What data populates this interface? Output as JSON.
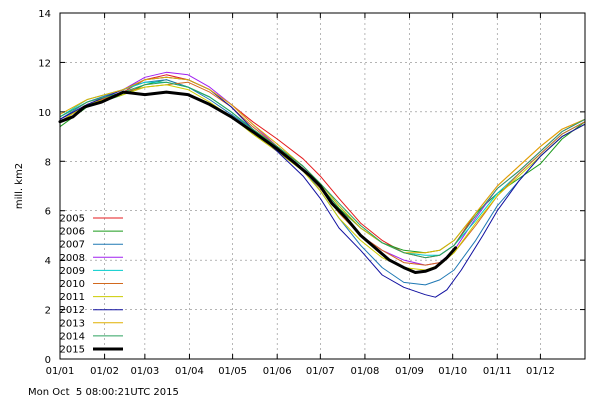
{
  "chart_data": {
    "type": "line",
    "title": "",
    "xlabel": "",
    "ylabel": "mill. km2",
    "ylim": [
      0,
      14
    ],
    "yticks": [
      0,
      2,
      4,
      6,
      8,
      10,
      12,
      14
    ],
    "xlim": [
      1,
      366
    ],
    "xticks": [
      {
        "day": 1,
        "label": "01/01"
      },
      {
        "day": 32,
        "label": "01/02"
      },
      {
        "day": 60,
        "label": "01/03"
      },
      {
        "day": 91,
        "label": "01/04"
      },
      {
        "day": 121,
        "label": "01/05"
      },
      {
        "day": 152,
        "label": "01/06"
      },
      {
        "day": 182,
        "label": "01/07"
      },
      {
        "day": 213,
        "label": "01/08"
      },
      {
        "day": 244,
        "label": "01/09"
      },
      {
        "day": 274,
        "label": "01/10"
      },
      {
        "day": 305,
        "label": "01/11"
      },
      {
        "day": 335,
        "label": "01/12"
      }
    ],
    "grid": true,
    "legend_position": "bottom-left",
    "series": [
      {
        "name": "2005",
        "color": "#e41a1c",
        "width": 1,
        "points": [
          [
            1,
            9.7
          ],
          [
            20,
            10.3
          ],
          [
            45,
            10.8
          ],
          [
            60,
            11.3
          ],
          [
            75,
            11.5
          ],
          [
            90,
            11.3
          ],
          [
            105,
            10.9
          ],
          [
            120,
            10.3
          ],
          [
            135,
            9.6
          ],
          [
            152,
            8.9
          ],
          [
            170,
            8.1
          ],
          [
            182,
            7.4
          ],
          [
            195,
            6.5
          ],
          [
            210,
            5.5
          ],
          [
            225,
            4.8
          ],
          [
            240,
            4.3
          ],
          [
            255,
            4.1
          ],
          [
            265,
            4.2
          ],
          [
            275,
            4.6
          ],
          [
            290,
            5.9
          ],
          [
            305,
            7.0
          ],
          [
            320,
            7.8
          ],
          [
            335,
            8.6
          ],
          [
            350,
            9.3
          ],
          [
            366,
            9.7
          ]
        ]
      },
      {
        "name": "2006",
        "color": "#1a9a1a",
        "width": 1,
        "points": [
          [
            1,
            9.4
          ],
          [
            20,
            10.2
          ],
          [
            45,
            10.7
          ],
          [
            60,
            11.1
          ],
          [
            75,
            11.3
          ],
          [
            90,
            11.0
          ],
          [
            105,
            10.6
          ],
          [
            120,
            10.0
          ],
          [
            135,
            9.3
          ],
          [
            152,
            8.6
          ],
          [
            170,
            7.8
          ],
          [
            182,
            7.0
          ],
          [
            195,
            6.1
          ],
          [
            210,
            5.3
          ],
          [
            225,
            4.7
          ],
          [
            240,
            4.4
          ],
          [
            255,
            4.3
          ],
          [
            265,
            4.4
          ],
          [
            275,
            4.8
          ],
          [
            290,
            5.9
          ],
          [
            305,
            6.7
          ],
          [
            320,
            7.3
          ],
          [
            335,
            7.9
          ],
          [
            350,
            8.9
          ],
          [
            366,
            9.6
          ]
        ]
      },
      {
        "name": "2007",
        "color": "#1f78b4",
        "width": 1,
        "points": [
          [
            1,
            9.7
          ],
          [
            20,
            10.4
          ],
          [
            45,
            10.9
          ],
          [
            60,
            11.2
          ],
          [
            75,
            11.3
          ],
          [
            90,
            11.0
          ],
          [
            105,
            10.5
          ],
          [
            120,
            9.9
          ],
          [
            135,
            9.3
          ],
          [
            152,
            8.5
          ],
          [
            170,
            7.7
          ],
          [
            182,
            6.8
          ],
          [
            195,
            5.7
          ],
          [
            210,
            4.6
          ],
          [
            225,
            3.7
          ],
          [
            240,
            3.1
          ],
          [
            255,
            3.0
          ],
          [
            265,
            3.2
          ],
          [
            275,
            3.6
          ],
          [
            290,
            4.8
          ],
          [
            305,
            6.2
          ],
          [
            320,
            7.2
          ],
          [
            335,
            8.2
          ],
          [
            350,
            9.0
          ],
          [
            366,
            9.5
          ]
        ]
      },
      {
        "name": "2008",
        "color": "#a020f0",
        "width": 1,
        "points": [
          [
            1,
            9.6
          ],
          [
            20,
            10.3
          ],
          [
            45,
            10.9
          ],
          [
            60,
            11.4
          ],
          [
            75,
            11.6
          ],
          [
            90,
            11.5
          ],
          [
            105,
            11.0
          ],
          [
            120,
            10.3
          ],
          [
            135,
            9.5
          ],
          [
            152,
            8.6
          ],
          [
            170,
            7.8
          ],
          [
            182,
            7.0
          ],
          [
            195,
            6.0
          ],
          [
            210,
            5.0
          ],
          [
            225,
            4.4
          ],
          [
            240,
            4.0
          ],
          [
            255,
            3.8
          ],
          [
            265,
            3.9
          ],
          [
            275,
            4.4
          ],
          [
            290,
            5.7
          ],
          [
            305,
            6.9
          ],
          [
            320,
            7.6
          ],
          [
            335,
            8.4
          ],
          [
            350,
            9.2
          ],
          [
            366,
            9.7
          ]
        ]
      },
      {
        "name": "2009",
        "color": "#00cccc",
        "width": 1,
        "points": [
          [
            1,
            9.8
          ],
          [
            20,
            10.5
          ],
          [
            45,
            10.9
          ],
          [
            60,
            11.2
          ],
          [
            75,
            11.2
          ],
          [
            90,
            11.0
          ],
          [
            105,
            10.6
          ],
          [
            120,
            10.0
          ],
          [
            135,
            9.3
          ],
          [
            152,
            8.6
          ],
          [
            170,
            7.8
          ],
          [
            182,
            7.1
          ],
          [
            195,
            6.2
          ],
          [
            210,
            5.3
          ],
          [
            225,
            4.7
          ],
          [
            240,
            4.3
          ],
          [
            255,
            4.2
          ],
          [
            265,
            4.2
          ],
          [
            275,
            4.6
          ],
          [
            290,
            5.6
          ],
          [
            305,
            6.7
          ],
          [
            320,
            7.5
          ],
          [
            335,
            8.3
          ],
          [
            350,
            9.1
          ],
          [
            366,
            9.6
          ]
        ]
      },
      {
        "name": "2010",
        "color": "#d2691e",
        "width": 1,
        "points": [
          [
            1,
            9.6
          ],
          [
            20,
            10.3
          ],
          [
            45,
            10.8
          ],
          [
            60,
            11.0
          ],
          [
            75,
            11.1
          ],
          [
            90,
            11.2
          ],
          [
            105,
            10.8
          ],
          [
            120,
            10.2
          ],
          [
            135,
            9.4
          ],
          [
            152,
            8.6
          ],
          [
            170,
            7.7
          ],
          [
            182,
            6.9
          ],
          [
            195,
            5.9
          ],
          [
            210,
            5.0
          ],
          [
            225,
            4.4
          ],
          [
            240,
            3.9
          ],
          [
            255,
            3.8
          ],
          [
            265,
            3.9
          ],
          [
            275,
            4.3
          ],
          [
            290,
            5.4
          ],
          [
            305,
            6.6
          ],
          [
            320,
            7.5
          ],
          [
            335,
            8.3
          ],
          [
            350,
            9.1
          ],
          [
            366,
            9.6
          ]
        ]
      },
      {
        "name": "2011",
        "color": "#cccc00",
        "width": 1,
        "points": [
          [
            1,
            9.6
          ],
          [
            20,
            10.3
          ],
          [
            45,
            10.7
          ],
          [
            60,
            11.0
          ],
          [
            75,
            11.1
          ],
          [
            90,
            10.9
          ],
          [
            105,
            10.4
          ],
          [
            120,
            9.8
          ],
          [
            135,
            9.1
          ],
          [
            152,
            8.4
          ],
          [
            170,
            7.6
          ],
          [
            182,
            6.8
          ],
          [
            195,
            5.7
          ],
          [
            210,
            4.8
          ],
          [
            225,
            4.1
          ],
          [
            240,
            3.7
          ],
          [
            255,
            3.6
          ],
          [
            265,
            3.8
          ],
          [
            275,
            4.3
          ],
          [
            290,
            5.5
          ],
          [
            305,
            6.6
          ],
          [
            320,
            7.4
          ],
          [
            335,
            8.2
          ],
          [
            350,
            9.0
          ],
          [
            366,
            9.5
          ]
        ]
      },
      {
        "name": "2012",
        "color": "#1010a0",
        "width": 1,
        "points": [
          [
            1,
            9.7
          ],
          [
            20,
            10.3
          ],
          [
            45,
            10.9
          ],
          [
            60,
            11.3
          ],
          [
            75,
            11.4
          ],
          [
            90,
            11.3
          ],
          [
            105,
            10.9
          ],
          [
            120,
            10.2
          ],
          [
            135,
            9.3
          ],
          [
            152,
            8.4
          ],
          [
            170,
            7.4
          ],
          [
            182,
            6.5
          ],
          [
            195,
            5.3
          ],
          [
            210,
            4.4
          ],
          [
            225,
            3.4
          ],
          [
            240,
            2.9
          ],
          [
            255,
            2.6
          ],
          [
            262,
            2.5
          ],
          [
            270,
            2.8
          ],
          [
            280,
            3.6
          ],
          [
            295,
            5.0
          ],
          [
            305,
            6.0
          ],
          [
            320,
            7.2
          ],
          [
            335,
            8.2
          ],
          [
            350,
            9.0
          ],
          [
            366,
            9.5
          ]
        ]
      },
      {
        "name": "2013",
        "color": "#e0b000",
        "width": 1,
        "points": [
          [
            1,
            9.9
          ],
          [
            20,
            10.5
          ],
          [
            45,
            10.9
          ],
          [
            60,
            11.3
          ],
          [
            75,
            11.4
          ],
          [
            90,
            11.3
          ],
          [
            105,
            10.9
          ],
          [
            120,
            10.3
          ],
          [
            135,
            9.5
          ],
          [
            152,
            8.7
          ],
          [
            170,
            7.8
          ],
          [
            182,
            7.1
          ],
          [
            195,
            6.2
          ],
          [
            210,
            5.3
          ],
          [
            225,
            4.7
          ],
          [
            240,
            4.3
          ],
          [
            255,
            4.3
          ],
          [
            265,
            4.4
          ],
          [
            275,
            4.8
          ],
          [
            290,
            5.9
          ],
          [
            305,
            7.0
          ],
          [
            320,
            7.8
          ],
          [
            335,
            8.6
          ],
          [
            350,
            9.3
          ],
          [
            366,
            9.7
          ]
        ]
      },
      {
        "name": "2014",
        "color": "#2ca25f",
        "width": 1,
        "points": [
          [
            1,
            9.8
          ],
          [
            20,
            10.4
          ],
          [
            45,
            10.8
          ],
          [
            60,
            11.1
          ],
          [
            75,
            11.2
          ],
          [
            90,
            11.0
          ],
          [
            105,
            10.6
          ],
          [
            120,
            10.0
          ],
          [
            135,
            9.3
          ],
          [
            152,
            8.6
          ],
          [
            170,
            7.8
          ],
          [
            182,
            7.1
          ],
          [
            195,
            6.3
          ],
          [
            210,
            5.4
          ],
          [
            225,
            4.7
          ],
          [
            240,
            4.3
          ],
          [
            255,
            4.1
          ],
          [
            265,
            4.2
          ],
          [
            275,
            4.6
          ],
          [
            290,
            5.8
          ],
          [
            305,
            6.9
          ],
          [
            320,
            7.6
          ],
          [
            335,
            8.4
          ],
          [
            350,
            9.2
          ],
          [
            366,
            9.7
          ]
        ]
      },
      {
        "name": "2015",
        "color": "#000000",
        "width": 3,
        "points": [
          [
            1,
            9.6
          ],
          [
            10,
            9.8
          ],
          [
            18,
            10.2
          ],
          [
            30,
            10.4
          ],
          [
            45,
            10.8
          ],
          [
            60,
            10.7
          ],
          [
            75,
            10.8
          ],
          [
            90,
            10.7
          ],
          [
            105,
            10.3
          ],
          [
            120,
            9.8
          ],
          [
            135,
            9.2
          ],
          [
            152,
            8.5
          ],
          [
            165,
            7.9
          ],
          [
            175,
            7.4
          ],
          [
            182,
            7.0
          ],
          [
            190,
            6.3
          ],
          [
            200,
            5.7
          ],
          [
            210,
            5.0
          ],
          [
            220,
            4.5
          ],
          [
            230,
            4.0
          ],
          [
            240,
            3.7
          ],
          [
            248,
            3.5
          ],
          [
            255,
            3.55
          ],
          [
            262,
            3.7
          ],
          [
            270,
            4.1
          ],
          [
            276,
            4.5
          ]
        ]
      }
    ]
  },
  "footer": {
    "timestamp": "Mon Oct  5 08:00:21UTC 2015"
  }
}
